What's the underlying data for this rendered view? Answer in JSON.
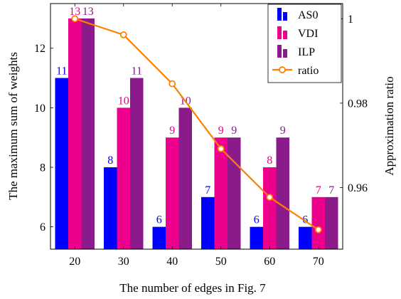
{
  "chart_data": {
    "type": "bar",
    "title": "",
    "xlabel": "The number of edges in Fig. 7",
    "ylabel": "The maximum sum of weights",
    "y2label": "Approximation ratio",
    "categories": [
      "20",
      "30",
      "40",
      "50",
      "60",
      "70"
    ],
    "ylim": [
      5.25,
      13.5
    ],
    "yticks": [
      6,
      8,
      10,
      12
    ],
    "y2lim": [
      0.9454,
      1.0036
    ],
    "y2ticks": [
      0.96,
      0.98,
      1
    ],
    "legend_position": "top-right",
    "series": [
      {
        "name": "AS0",
        "kind": "bar",
        "color": "#0000ff",
        "values": [
          11,
          8,
          6,
          7,
          6,
          6
        ]
      },
      {
        "name": "VDI",
        "kind": "bar",
        "color": "#ec008c",
        "values": [
          13,
          10,
          9,
          9,
          8,
          7
        ]
      },
      {
        "name": "ILP",
        "kind": "bar",
        "color": "#8b1a8b",
        "values": [
          13,
          11,
          10,
          9,
          9,
          7
        ]
      },
      {
        "name": "ratio",
        "kind": "line",
        "axis": "right",
        "color": "#ff8000",
        "values": [
          1,
          0.9962,
          0.9846,
          0.9692,
          0.9577,
          0.95
        ]
      }
    ]
  }
}
